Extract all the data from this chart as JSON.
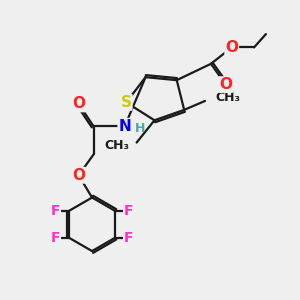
{
  "bg_color": "#efefef",
  "bond_color": "#1a1a1a",
  "bond_width": 1.6,
  "atom_colors": {
    "S": "#cccc00",
    "O": "#ff2222",
    "N": "#0000ee",
    "H": "#44aaaa",
    "F": "#ff33cc",
    "C": "#1a1a1a"
  },
  "font_size_atom": 11,
  "font_size_small": 9
}
